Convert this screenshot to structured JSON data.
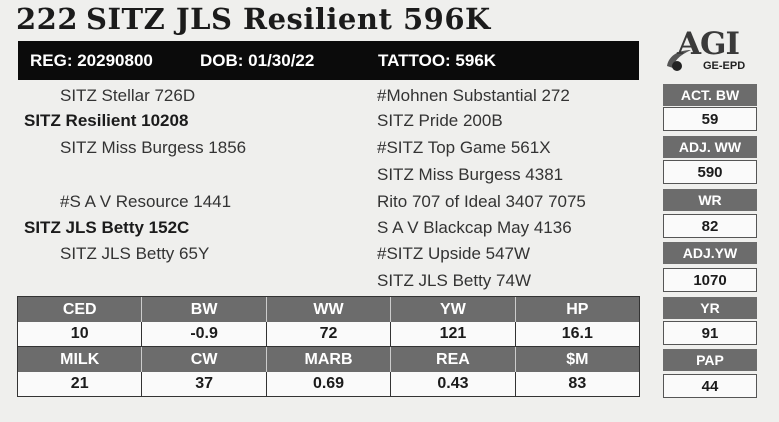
{
  "header": {
    "lot": "222",
    "name": "SITZ JLS Resilient 596K",
    "reg": "REG: 20290800",
    "dob": "DOB: 01/30/22",
    "tattoo": "TATTOO: 596K"
  },
  "logo": {
    "text": "AGI",
    "sub": "GE-EPD"
  },
  "pedigree": {
    "sire_sire": "SITZ Stellar 726D",
    "sire": "SITZ Resilient 10208",
    "sire_dam": "SITZ Miss Burgess 1856",
    "dam_sire": "#S A V Resource 1441",
    "dam": "SITZ JLS Betty 152C",
    "dam_dam": "SITZ JLS Betty 65Y",
    "g1": "#Mohnen Substantial 272",
    "g2": "SITZ Pride 200B",
    "g3": "#SITZ Top Game 561X",
    "g4": "SITZ Miss Burgess 4381",
    "g5": "Rito 707 of Ideal 3407 7075",
    "g6": "S A V Blackcap May 4136",
    "g7": "#SITZ Upside 547W",
    "g8": "SITZ JLS Betty 74W"
  },
  "side": {
    "act_bw_label": "ACT. BW",
    "act_bw": "59",
    "adj_ww_label": "ADJ. WW",
    "adj_ww": "590",
    "wr_label": "WR",
    "wr": "82",
    "adj_yw_label": "ADJ.YW",
    "adj_yw": "1070",
    "yr_label": "YR",
    "yr": "91",
    "pap_label": "PAP",
    "pap": "44"
  },
  "epds": {
    "row1_headers": [
      "CED",
      "BW",
      "WW",
      "YW",
      "HP"
    ],
    "row1_values": [
      "10",
      "-0.9",
      "72",
      "121",
      "16.1"
    ],
    "row2_headers": [
      "MILK",
      "CW",
      "MARB",
      "REA",
      "$M"
    ],
    "row2_values": [
      "21",
      "37",
      "0.69",
      "0.43",
      "83"
    ]
  }
}
